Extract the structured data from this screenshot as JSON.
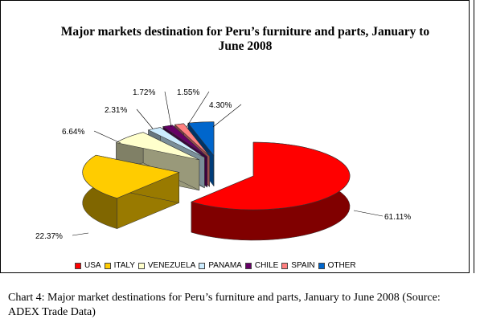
{
  "chart_data": {
    "type": "pie",
    "title": "Major markets destination for Peru’s furniture and parts, January to June 2008",
    "categories": [
      "USA",
      "ITALY",
      "VENEZUELA",
      "PANAMA",
      "CHILE",
      "SPAIN",
      "OTHER"
    ],
    "values": [
      61.11,
      22.37,
      6.64,
      2.31,
      1.72,
      1.55,
      4.3
    ],
    "data_labels": [
      "61.11%",
      "22.37%",
      "6.64%",
      "2.31%",
      "1.72%",
      "1.55%",
      "4.30%"
    ],
    "colors": [
      "#ff0000",
      "#ffcc00",
      "#ffffcc",
      "#ccecff",
      "#660066",
      "#ff8080",
      "#0066cc"
    ],
    "legend_position": "bottom",
    "style": "3d-exploded"
  },
  "caption": "Chart 4: Major market destinations for Peru’s furniture and parts, January to June 2008 (Source: ADEX Trade Data)"
}
